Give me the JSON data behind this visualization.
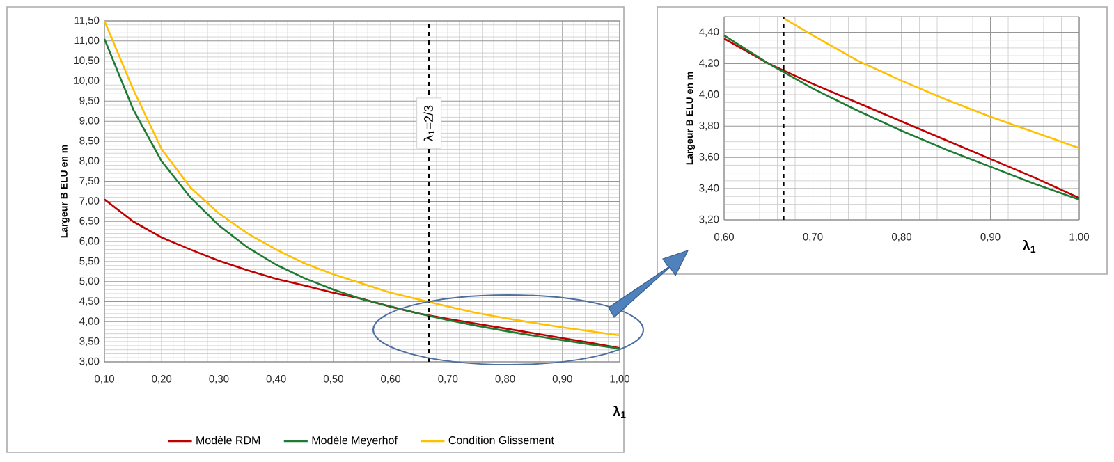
{
  "chart_data": [
    {
      "type": "line",
      "xlabel": "**λ$_{1}$**",
      "ylabel": "**Largeur B ELU en m**",
      "xlim": [
        0.1,
        1.0
      ],
      "ylim": [
        3.0,
        11.5
      ],
      "xticks": [
        {
          "value": 0.1,
          "label": "0,10"
        },
        {
          "value": 0.2,
          "label": "0,20"
        },
        {
          "value": 0.3,
          "label": "0,30"
        },
        {
          "value": 0.4,
          "label": "0,40"
        },
        {
          "value": 0.5,
          "label": "0,50"
        },
        {
          "value": 0.6,
          "label": "0,60"
        },
        {
          "value": 0.7,
          "label": "0,70"
        },
        {
          "value": 0.8,
          "label": "0,80"
        },
        {
          "value": 0.9,
          "label": "0,90"
        },
        {
          "value": 1.0,
          "label": "1,00"
        }
      ],
      "yticks": [
        {
          "value": 3.0,
          "label": "3,00"
        },
        {
          "value": 3.5,
          "label": "3,50"
        },
        {
          "value": 4.0,
          "label": "4,00"
        },
        {
          "value": 4.5,
          "label": "4,50"
        },
        {
          "value": 5.0,
          "label": "5,00"
        },
        {
          "value": 5.5,
          "label": "5,50"
        },
        {
          "value": 6.0,
          "label": "6,00"
        },
        {
          "value": 6.5,
          "label": "6,50"
        },
        {
          "value": 7.0,
          "label": "7,00"
        },
        {
          "value": 7.5,
          "label": "7,50"
        },
        {
          "value": 8.0,
          "label": "8,00"
        },
        {
          "value": 8.5,
          "label": "8,50"
        },
        {
          "value": 9.0,
          "label": "9,00"
        },
        {
          "value": 9.5,
          "label": "9,50"
        },
        {
          "value": 10.0,
          "label": "10,00"
        },
        {
          "value": 10.5,
          "label": "10,50"
        },
        {
          "value": 11.0,
          "label": "11,00"
        },
        {
          "value": 11.5,
          "label": "11,50"
        }
      ],
      "grid": true,
      "legend": "bottom",
      "ref_lines": [
        {
          "axis": "x",
          "value": 0.667,
          "label": "λ$_{1}$=2/3",
          "line_style": "dashed",
          "color": "#000000"
        }
      ],
      "series": [
        {
          "name": "Modèle RDM",
          "color": "#c00000",
          "x": [
            0.1,
            0.15,
            0.2,
            0.25,
            0.3,
            0.35,
            0.4,
            0.45,
            0.5,
            0.55,
            0.6,
            0.65,
            0.7,
            0.75,
            0.8,
            0.85,
            0.9,
            0.95,
            1.0
          ],
          "values": [
            7.05,
            6.5,
            6.1,
            5.8,
            5.52,
            5.28,
            5.07,
            4.9,
            4.72,
            4.57,
            4.37,
            4.2,
            4.07,
            3.95,
            3.83,
            3.71,
            3.59,
            3.47,
            3.34
          ]
        },
        {
          "name": "Modèle Meyerhof",
          "color": "#1e7b34",
          "x": [
            0.1,
            0.15,
            0.2,
            0.25,
            0.3,
            0.35,
            0.4,
            0.45,
            0.5,
            0.55,
            0.6,
            0.65,
            0.7,
            0.75,
            0.8,
            0.85,
            0.9,
            0.95,
            1.0
          ],
          "values": [
            11.05,
            9.3,
            8.0,
            7.1,
            6.4,
            5.85,
            5.42,
            5.08,
            4.8,
            4.56,
            4.38,
            4.2,
            4.04,
            3.9,
            3.77,
            3.65,
            3.54,
            3.43,
            3.33
          ]
        },
        {
          "name": "Condition Glissement",
          "color": "#ffc000",
          "x": [
            0.1,
            0.15,
            0.2,
            0.25,
            0.3,
            0.35,
            0.4,
            0.45,
            0.5,
            0.55,
            0.6,
            0.65,
            0.7,
            0.75,
            0.8,
            0.85,
            0.9,
            0.95,
            1.0
          ],
          "values": [
            11.5,
            9.8,
            8.3,
            7.35,
            6.7,
            6.2,
            5.8,
            5.45,
            5.18,
            4.95,
            4.72,
            4.55,
            4.38,
            4.22,
            4.09,
            3.97,
            3.86,
            3.76,
            3.66
          ]
        }
      ]
    },
    {
      "type": "line",
      "xlabel": "**λ$_{1}$**",
      "ylabel": "**Largeur B ELU en m**",
      "xlim": [
        0.6,
        1.0
      ],
      "ylim": [
        3.2,
        4.5
      ],
      "xticks": [
        {
          "value": 0.6,
          "label": "0,60"
        },
        {
          "value": 0.7,
          "label": "0,70"
        },
        {
          "value": 0.8,
          "label": "0,80"
        },
        {
          "value": 0.9,
          "label": "0,90"
        },
        {
          "value": 1.0,
          "label": "1,00"
        }
      ],
      "yticks": [
        {
          "value": 3.2,
          "label": "3,20"
        },
        {
          "value": 3.4,
          "label": "3,40"
        },
        {
          "value": 3.6,
          "label": "3,60"
        },
        {
          "value": 3.8,
          "label": "3,80"
        },
        {
          "value": 4.0,
          "label": "4,00"
        },
        {
          "value": 4.2,
          "label": "4,20"
        },
        {
          "value": 4.4,
          "label": "4,40"
        }
      ],
      "grid": true,
      "ref_lines": [
        {
          "axis": "x",
          "value": 0.667,
          "line_style": "dashed",
          "color": "#000000"
        }
      ],
      "series": [
        {
          "color": "#c00000",
          "x": [
            0.6,
            0.65,
            0.7,
            0.75,
            0.8,
            0.85,
            0.9,
            0.95,
            1.0
          ],
          "values": [
            4.36,
            4.2,
            4.07,
            3.95,
            3.83,
            3.71,
            3.59,
            3.47,
            3.34
          ]
        },
        {
          "color": "#1e7b34",
          "x": [
            0.6,
            0.65,
            0.7,
            0.75,
            0.8,
            0.85,
            0.9,
            0.95,
            1.0
          ],
          "values": [
            4.38,
            4.2,
            4.04,
            3.9,
            3.77,
            3.65,
            3.54,
            3.43,
            3.33
          ]
        },
        {
          "color": "#ffc000",
          "x": [
            0.667,
            0.7,
            0.75,
            0.8,
            0.85,
            0.9,
            0.95,
            1.0
          ],
          "values": [
            4.49,
            4.38,
            4.22,
            4.09,
            3.97,
            3.86,
            3.76,
            3.66
          ]
        }
      ]
    }
  ]
}
